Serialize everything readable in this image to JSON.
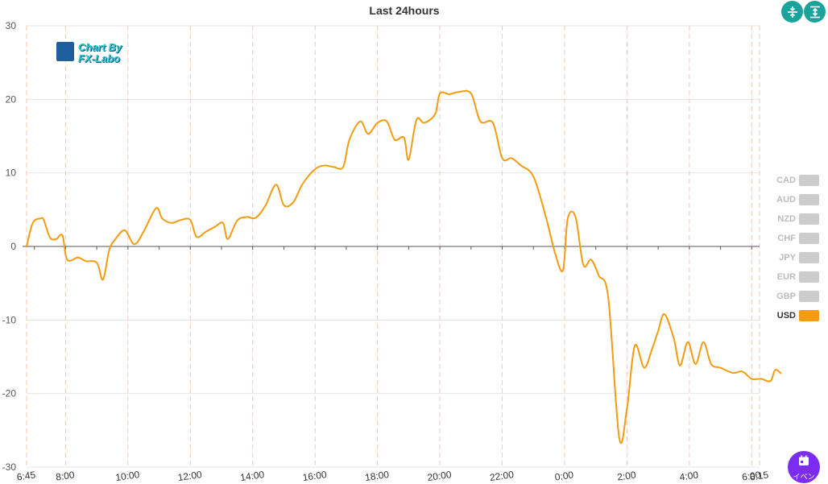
{
  "chart_data": {
    "type": "line",
    "title": "Last 24hours",
    "ylim": [
      -30,
      30
    ],
    "yticks": [
      -30,
      -20,
      -10,
      0,
      10,
      20,
      30
    ],
    "xticks": [
      "6:45",
      "8:00",
      "10:00",
      "12:00",
      "14:00",
      "16:00",
      "18:00",
      "20:00",
      "22:00",
      "0:00",
      "2:00",
      "4:00",
      "6:00",
      "6:15"
    ],
    "xtick_hours": [
      6.75,
      8,
      10,
      12,
      14,
      16,
      18,
      20,
      22,
      24,
      26,
      28,
      30,
      30.25
    ],
    "xlim_hours": [
      6.75,
      30.25
    ],
    "grid": true,
    "legend_position": "right",
    "series": [
      {
        "name": "USD",
        "color": "#f39c12",
        "visible": true,
        "points": [
          [
            6.75,
            0
          ],
          [
            6.95,
            3.2
          ],
          [
            7.2,
            3.8
          ],
          [
            7.3,
            3.6
          ],
          [
            7.5,
            1.2
          ],
          [
            7.7,
            1.0
          ],
          [
            7.9,
            1.5
          ],
          [
            8.05,
            -1.8
          ],
          [
            8.4,
            -1.5
          ],
          [
            8.65,
            -2.0
          ],
          [
            9.0,
            -2.2
          ],
          [
            9.2,
            -4.5
          ],
          [
            9.4,
            -0.5
          ],
          [
            9.6,
            1.0
          ],
          [
            9.9,
            2.2
          ],
          [
            10.2,
            0.3
          ],
          [
            10.5,
            2.0
          ],
          [
            10.9,
            5.2
          ],
          [
            11.1,
            3.8
          ],
          [
            11.4,
            3.2
          ],
          [
            11.7,
            3.6
          ],
          [
            12.0,
            3.6
          ],
          [
            12.2,
            1.3
          ],
          [
            12.5,
            2.0
          ],
          [
            12.8,
            2.7
          ],
          [
            13.05,
            3.2
          ],
          [
            13.2,
            1.0
          ],
          [
            13.5,
            3.5
          ],
          [
            13.8,
            4.0
          ],
          [
            14.1,
            3.9
          ],
          [
            14.4,
            5.5
          ],
          [
            14.75,
            8.4
          ],
          [
            15.0,
            5.6
          ],
          [
            15.3,
            6.0
          ],
          [
            15.6,
            8.5
          ],
          [
            16.0,
            10.5
          ],
          [
            16.3,
            11.0
          ],
          [
            16.6,
            10.8
          ],
          [
            16.9,
            10.8
          ],
          [
            17.1,
            14.5
          ],
          [
            17.45,
            17.0
          ],
          [
            17.7,
            15.3
          ],
          [
            18.0,
            16.8
          ],
          [
            18.3,
            17.0
          ],
          [
            18.55,
            14.5
          ],
          [
            18.85,
            14.8
          ],
          [
            19.0,
            11.8
          ],
          [
            19.25,
            17.2
          ],
          [
            19.5,
            16.8
          ],
          [
            19.85,
            18.0
          ],
          [
            20.0,
            20.8
          ],
          [
            20.3,
            20.7
          ],
          [
            20.6,
            21.0
          ],
          [
            21.0,
            20.8
          ],
          [
            21.3,
            17.0
          ],
          [
            21.7,
            16.8
          ],
          [
            22.0,
            12.0
          ],
          [
            22.3,
            12.0
          ],
          [
            22.6,
            11.0
          ],
          [
            23.0,
            9.5
          ],
          [
            23.4,
            4.0
          ],
          [
            23.7,
            -1.0
          ],
          [
            23.95,
            -3.2
          ],
          [
            24.1,
            3.8
          ],
          [
            24.35,
            4.0
          ],
          [
            24.6,
            -2.5
          ],
          [
            24.85,
            -1.8
          ],
          [
            25.1,
            -4.0
          ],
          [
            25.4,
            -7.0
          ],
          [
            25.75,
            -26.0
          ],
          [
            26.0,
            -22.0
          ],
          [
            26.25,
            -13.5
          ],
          [
            26.55,
            -16.5
          ],
          [
            26.8,
            -14.0
          ],
          [
            27.0,
            -11.5
          ],
          [
            27.2,
            -9.2
          ],
          [
            27.5,
            -12.5
          ],
          [
            27.7,
            -16.2
          ],
          [
            27.95,
            -13.0
          ],
          [
            28.2,
            -16.0
          ],
          [
            28.45,
            -13.0
          ],
          [
            28.7,
            -16.0
          ],
          [
            29.0,
            -16.5
          ],
          [
            29.4,
            -17.2
          ],
          [
            29.7,
            -17.0
          ],
          [
            30.0,
            -18.0
          ],
          [
            30.3,
            -18.0
          ],
          [
            30.6,
            -18.3
          ],
          [
            30.75,
            -16.8
          ],
          [
            30.95,
            -17.3
          ]
        ]
      },
      {
        "name": "GBP",
        "color": "#cccccc",
        "visible": false
      },
      {
        "name": "EUR",
        "color": "#cccccc",
        "visible": false
      },
      {
        "name": "JPY",
        "color": "#cccccc",
        "visible": false
      },
      {
        "name": "CHF",
        "color": "#cccccc",
        "visible": false
      },
      {
        "name": "NZD",
        "color": "#cccccc",
        "visible": false
      },
      {
        "name": "AUD",
        "color": "#cccccc",
        "visible": false
      },
      {
        "name": "CAD",
        "color": "#cccccc",
        "visible": false
      }
    ]
  },
  "legend_order": [
    "CAD",
    "AUD",
    "NZD",
    "CHF",
    "JPY",
    "EUR",
    "GBP",
    "USD"
  ],
  "logo": {
    "line1": "Chart By",
    "line2": "FX-Labo"
  },
  "toolbar": {
    "icon1": "compress-icon",
    "icon2": "expand-icon"
  },
  "event_button": {
    "label": "イベン",
    "icon": "calendar-icon"
  },
  "colors": {
    "accent": "#f39c12",
    "inactive": "#cccccc",
    "tool": "#1aa39b",
    "event": "#7b2cf0"
  }
}
